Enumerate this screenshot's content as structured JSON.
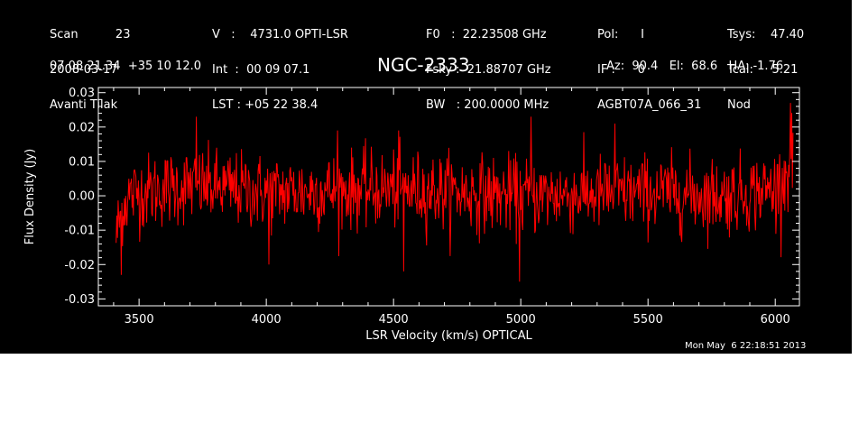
{
  "header": {
    "col1": [
      "Scan          23",
      "2008-03-17",
      "Avanti Tilak"
    ],
    "col2": [
      "V   :    4731.0 OPTI-LSR",
      "Int  :  00 09 07.1",
      "LST : +05 22 38.4"
    ],
    "col3": [
      "F0   :  22.23508 GHz",
      "Fsky :  21.88707 GHz",
      "BW   : 200.0000 MHz"
    ],
    "col4": [
      "Pol:      I",
      "IF :      0",
      "AGBT07A_066_31"
    ],
    "col5": [
      "Tsys:    47.40",
      "Tcal:     5.21",
      "Nod"
    ],
    "coords": "07 08 21.34  +35 10 12.0",
    "source": "NGC-2333",
    "pointing": "Az:  90.4   El:  68.6   HA: -1.76",
    "timestamp": "Mon May  6 22:18:51 2013"
  },
  "colors": {
    "background": "#000000",
    "trace": "#ff0000",
    "axes": "#ffffff"
  },
  "chart_data": {
    "type": "line",
    "title": "NGC-2333",
    "xlabel": "LSR Velocity (km/s) OPTICAL",
    "ylabel": "Flux Density (Jy)",
    "xlim": [
      3340,
      6095
    ],
    "ylim": [
      -0.032,
      0.0315
    ],
    "x_ticks": [
      3500,
      4000,
      4500,
      5000,
      5500,
      6000
    ],
    "x_tick_labels": [
      "3500",
      "4000",
      "4500",
      "5000",
      "5500",
      "6000"
    ],
    "y_ticks": [
      -0.03,
      -0.02,
      -0.01,
      0.0,
      0.01,
      0.02,
      0.03
    ],
    "y_tick_labels": [
      "-0.03",
      "-0.02",
      "-0.01",
      "0.00",
      "0.01",
      "0.02",
      "0.03"
    ],
    "grid": false,
    "series": [
      {
        "color": "#ff0000",
        "x_range": [
          3410,
          6070
        ],
        "x_step": 2.5,
        "baseline_profile": {
          "x": [
            3410,
            3430,
            3460,
            3500,
            3700,
            4000,
            4500,
            5000,
            5500,
            5800,
            6000,
            6040,
            6070
          ],
          "level": [
            -0.012,
            -0.004,
            0.0,
            0.001,
            0.003,
            0.001,
            0.002,
            0.0,
            0.001,
            0.0,
            0.002,
            0.006,
            0.012
          ]
        },
        "rms": 0.0055,
        "approx_extremes": [
          {
            "x": 3430,
            "y": -0.023
          },
          {
            "x": 3725,
            "y": 0.023
          },
          {
            "x": 4010,
            "y": -0.02
          },
          {
            "x": 4280,
            "y": 0.019
          },
          {
            "x": 4520,
            "y": 0.019
          },
          {
            "x": 4540,
            "y": -0.022
          },
          {
            "x": 4995,
            "y": -0.025
          },
          {
            "x": 5040,
            "y": 0.023
          },
          {
            "x": 5370,
            "y": 0.021
          },
          {
            "x": 6060,
            "y": 0.027
          }
        ]
      }
    ]
  }
}
